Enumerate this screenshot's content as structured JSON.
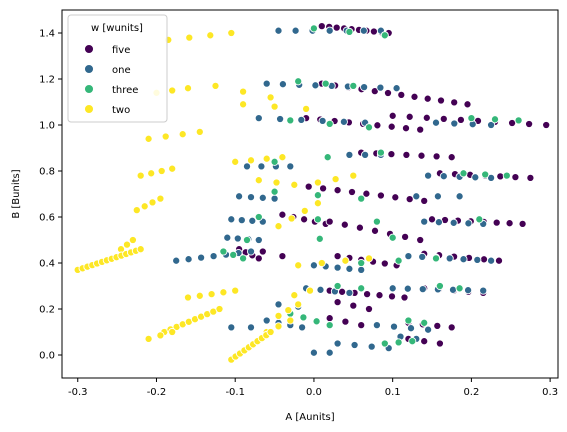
{
  "chart_data": {
    "type": "scatter",
    "xlabel": "A [Aunits]",
    "ylabel": "B [Bunits]",
    "xlim": [
      -0.32,
      0.31
    ],
    "ylim": [
      -0.1,
      1.5
    ],
    "xticks": [
      -0.3,
      -0.2,
      -0.1,
      0.0,
      0.1,
      0.2,
      0.3
    ],
    "yticks": [
      0.0,
      0.2,
      0.4,
      0.6,
      0.8,
      1.0,
      1.2,
      1.4
    ],
    "grid": false,
    "legend": {
      "title": "w [wunits]",
      "placement": "top-left"
    },
    "series": [
      {
        "name": "five",
        "color": "#440154",
        "rows": [
          {
            "x0": 0.01,
            "x1": 0.095,
            "y0": 1.43,
            "y1": 1.4,
            "n": 10
          },
          {
            "x0": 0.01,
            "x1": 0.195,
            "y0": 1.18,
            "y1": 1.09,
            "n": 12
          },
          {
            "x0": 0.1,
            "x1": 0.295,
            "y0": 1.04,
            "y1": 1.0,
            "n": 10
          },
          {
            "x0": -0.01,
            "x1": 0.135,
            "y0": 1.03,
            "y1": 0.98,
            "n": 9
          },
          {
            "x0": 0.06,
            "x1": 0.175,
            "y0": 0.88,
            "y1": 0.86,
            "n": 7
          },
          {
            "x0": 0.16,
            "x1": 0.275,
            "y0": 0.79,
            "y1": 0.77,
            "n": 7
          },
          {
            "x0": -0.025,
            "x1": 0.14,
            "y0": 0.74,
            "y1": 0.67,
            "n": 10
          },
          {
            "x0": 0.15,
            "x1": 0.265,
            "y0": 0.59,
            "y1": 0.57,
            "n": 8
          },
          {
            "x0": -0.04,
            "x1": 0.015,
            "y0": 0.61,
            "y1": 0.57,
            "n": 5
          },
          {
            "x0": 0.02,
            "x1": 0.135,
            "y0": 0.58,
            "y1": 0.5,
            "n": 7
          },
          {
            "x0": -0.095,
            "x1": -0.07,
            "y0": 0.46,
            "y1": 0.42,
            "n": 4
          },
          {
            "x0": -0.065,
            "x1": -0.04,
            "y0": 0.45,
            "y1": 0.43,
            "n": 2
          },
          {
            "x0": 0.14,
            "x1": 0.235,
            "y0": 0.44,
            "y1": 0.41,
            "n": 6
          },
          {
            "x0": 0.03,
            "x1": 0.105,
            "y0": 0.43,
            "y1": 0.39,
            "n": 6
          },
          {
            "x0": 0.14,
            "x1": 0.215,
            "y0": 0.29,
            "y1": 0.27,
            "n": 5
          },
          {
            "x0": 0.02,
            "x1": 0.115,
            "y0": 0.28,
            "y1": 0.25,
            "n": 7
          },
          {
            "x0": 0.12,
            "x1": 0.175,
            "y0": 0.14,
            "y1": 0.12,
            "n": 4
          },
          {
            "x0": 0.03,
            "x1": 0.07,
            "y0": 0.23,
            "y1": 0.2,
            "n": 3
          },
          {
            "x0": 0.02,
            "x1": 0.06,
            "y0": 0.16,
            "y1": 0.13,
            "n": 3
          },
          {
            "x0": 0.12,
            "x1": 0.16,
            "y0": 0.07,
            "y1": 0.05,
            "n": 3
          }
        ]
      },
      {
        "name": "one",
        "color": "#31688e",
        "rows": [
          {
            "x0": -0.045,
            "x1": 0.085,
            "y0": 1.41,
            "y1": 1.41,
            "n": 7
          },
          {
            "x0": -0.06,
            "x1": 0.105,
            "y0": 1.18,
            "y1": 1.16,
            "n": 9
          },
          {
            "x0": -0.07,
            "x1": 0.065,
            "y0": 1.03,
            "y1": 1.01,
            "n": 6
          },
          {
            "x0": 0.155,
            "x1": 0.225,
            "y0": 1.01,
            "y1": 1.0,
            "n": 4
          },
          {
            "x0": 0.045,
            "x1": 0.085,
            "y0": 0.87,
            "y1": 0.87,
            "n": 3
          },
          {
            "x0": -0.085,
            "x1": -0.03,
            "y0": 0.82,
            "y1": 0.82,
            "n": 4
          },
          {
            "x0": 0.145,
            "x1": 0.225,
            "y0": 0.78,
            "y1": 0.77,
            "n": 5
          },
          {
            "x0": -0.095,
            "x1": -0.05,
            "y0": 0.69,
            "y1": 0.68,
            "n": 4
          },
          {
            "x0": 0.13,
            "x1": 0.185,
            "y0": 0.69,
            "y1": 0.69,
            "n": 3
          },
          {
            "x0": -0.105,
            "x1": -0.065,
            "y0": 0.59,
            "y1": 0.58,
            "n": 4
          },
          {
            "x0": 0.14,
            "x1": 0.215,
            "y0": 0.58,
            "y1": 0.57,
            "n": 5
          },
          {
            "x0": -0.11,
            "x1": -0.07,
            "y0": 0.51,
            "y1": 0.5,
            "n": 4
          },
          {
            "x0": -0.175,
            "x1": -0.08,
            "y0": 0.41,
            "y1": 0.45,
            "n": 7
          },
          {
            "x0": 0.12,
            "x1": 0.225,
            "y0": 0.43,
            "y1": 0.41,
            "n": 7
          },
          {
            "x0": 0.0,
            "x1": 0.06,
            "y0": 0.39,
            "y1": 0.37,
            "n": 5
          },
          {
            "x0": 0.1,
            "x1": 0.215,
            "y0": 0.29,
            "y1": 0.28,
            "n": 7
          },
          {
            "x0": -0.01,
            "x1": 0.045,
            "y0": 0.29,
            "y1": 0.27,
            "n": 4
          },
          {
            "x0": -0.045,
            "x1": -0.02,
            "y0": 0.22,
            "y1": 0.21,
            "n": 2
          },
          {
            "x0": -0.06,
            "x1": -0.015,
            "y0": 0.15,
            "y1": 0.12,
            "n": 4
          },
          {
            "x0": -0.105,
            "x1": -0.08,
            "y0": 0.12,
            "y1": 0.12,
            "n": 2
          },
          {
            "x0": 0.08,
            "x1": 0.145,
            "y0": 0.13,
            "y1": 0.11,
            "n": 4
          },
          {
            "x0": 0.03,
            "x1": 0.095,
            "y0": 0.05,
            "y1": 0.03,
            "n": 4
          },
          {
            "x0": 0.11,
            "x1": 0.13,
            "y0": 0.08,
            "y1": 0.07,
            "n": 2
          },
          {
            "x0": 0.0,
            "x1": 0.02,
            "y0": 0.01,
            "y1": 0.01,
            "n": 2
          }
        ]
      },
      {
        "name": "three",
        "color": "#35b779",
        "rows": [
          {
            "x0": 0.0,
            "x1": 0.09,
            "y0": 1.42,
            "y1": 1.39,
            "n": 3
          },
          {
            "x0": -0.02,
            "x1": 0.05,
            "y0": 1.19,
            "y1": 1.17,
            "n": 3
          },
          {
            "x0": 0.2,
            "x1": 0.26,
            "y0": 1.03,
            "y1": 1.02,
            "n": 3
          },
          {
            "x0": -0.03,
            "x1": 0.07,
            "y0": 1.02,
            "y1": 0.99,
            "n": 3
          },
          {
            "x0": -0.05,
            "x1": 0.085,
            "y0": 0.84,
            "y1": 0.88,
            "n": 3
          },
          {
            "x0": 0.19,
            "x1": 0.245,
            "y0": 0.79,
            "y1": 0.78,
            "n": 3
          },
          {
            "x0": -0.05,
            "x1": 0.06,
            "y0": 0.71,
            "y1": 0.68,
            "n": 3
          },
          {
            "x0": -0.07,
            "x1": 0.08,
            "y0": 0.6,
            "y1": 0.58,
            "n": 3
          },
          {
            "x0": 0.21,
            "x1": 0.21,
            "y0": 0.59,
            "y1": 0.59,
            "n": 1
          },
          {
            "x0": -0.085,
            "x1": 0.1,
            "y0": 0.5,
            "y1": 0.51,
            "n": 3
          },
          {
            "x0": -0.115,
            "x1": -0.09,
            "y0": 0.45,
            "y1": 0.42,
            "n": 3
          },
          {
            "x0": 0.06,
            "x1": 0.155,
            "y0": 0.4,
            "y1": 0.42,
            "n": 3
          },
          {
            "x0": 0.03,
            "x1": 0.06,
            "y0": 0.3,
            "y1": 0.29,
            "n": 2
          },
          {
            "x0": 0.16,
            "x1": 0.185,
            "y0": 0.3,
            "y1": 0.29,
            "n": 2
          },
          {
            "x0": -0.03,
            "x1": 0.02,
            "y0": 0.18,
            "y1": 0.13,
            "n": 4
          },
          {
            "x0": 0.09,
            "x1": 0.125,
            "y0": 0.05,
            "y1": 0.06,
            "n": 3
          },
          {
            "x0": 0.12,
            "x1": 0.14,
            "y0": 0.15,
            "y1": 0.14,
            "n": 2
          }
        ]
      },
      {
        "name": "two",
        "color": "#fde725",
        "rows": [
          {
            "x0": -0.185,
            "x1": -0.105,
            "y0": 1.37,
            "y1": 1.4,
            "n": 4
          },
          {
            "x0": -0.2,
            "x1": -0.16,
            "y0": 1.14,
            "y1": 1.16,
            "n": 3
          },
          {
            "x0": -0.125,
            "x1": -0.055,
            "y0": 1.17,
            "y1": 1.12,
            "n": 3
          },
          {
            "x0": -0.09,
            "x1": -0.01,
            "y0": 1.09,
            "y1": 1.07,
            "n": 3
          },
          {
            "x0": -0.21,
            "x1": -0.145,
            "y0": 0.94,
            "y1": 0.97,
            "n": 4
          },
          {
            "x0": -0.1,
            "x1": -0.04,
            "y0": 0.84,
            "y1": 0.86,
            "n": 4
          },
          {
            "x0": -0.22,
            "x1": -0.18,
            "y0": 0.78,
            "y1": 0.81,
            "n": 4
          },
          {
            "x0": -0.07,
            "x1": -0.025,
            "y0": 0.76,
            "y1": 0.74,
            "n": 3
          },
          {
            "x0": 0.005,
            "x1": 0.05,
            "y0": 0.75,
            "y1": 0.78,
            "n": 3
          },
          {
            "x0": -0.225,
            "x1": -0.195,
            "y0": 0.63,
            "y1": 0.68,
            "n": 4
          },
          {
            "x0": -0.045,
            "x1": 0.005,
            "y0": 0.56,
            "y1": 0.66,
            "n": 4
          },
          {
            "x0": -0.245,
            "x1": -0.23,
            "y0": 0.46,
            "y1": 0.5,
            "n": 3
          },
          {
            "x0": -0.3,
            "x1": -0.22,
            "y0": 0.37,
            "y1": 0.46,
            "n": 14
          },
          {
            "x0": -0.02,
            "x1": 0.07,
            "y0": 0.39,
            "y1": 0.42,
            "n": 4
          },
          {
            "x0": -0.16,
            "x1": -0.1,
            "y0": 0.25,
            "y1": 0.28,
            "n": 5
          },
          {
            "x0": -0.025,
            "x1": -0.005,
            "y0": 0.26,
            "y1": 0.28,
            "n": 2
          },
          {
            "x0": -0.19,
            "x1": -0.12,
            "y0": 0.1,
            "y1": 0.2,
            "n": 10
          },
          {
            "x0": -0.045,
            "x1": -0.02,
            "y0": 0.17,
            "y1": 0.22,
            "n": 3
          },
          {
            "x0": -0.21,
            "x1": -0.18,
            "y0": 0.07,
            "y1": 0.1,
            "n": 3
          },
          {
            "x0": -0.06,
            "x1": -0.03,
            "y0": 0.1,
            "y1": 0.15,
            "n": 3
          },
          {
            "x0": -0.105,
            "x1": -0.055,
            "y0": -0.02,
            "y1": 0.1,
            "n": 10
          }
        ]
      }
    ]
  }
}
